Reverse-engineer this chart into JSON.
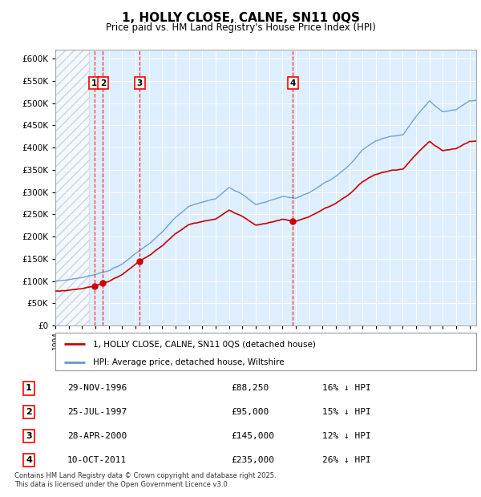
{
  "title": "1, HOLLY CLOSE, CALNE, SN11 0QS",
  "subtitle": "Price paid vs. HM Land Registry's House Price Index (HPI)",
  "ylim": [
    0,
    620000
  ],
  "yticks": [
    0,
    50000,
    100000,
    150000,
    200000,
    250000,
    300000,
    350000,
    400000,
    450000,
    500000,
    550000,
    600000
  ],
  "background_color": "#ffffff",
  "plot_bg_color": "#ddeeff",
  "grid_color": "#ffffff",
  "sale_vlines": [
    1996.91,
    1997.56,
    2000.32,
    2011.78
  ],
  "sale_prices": [
    88250,
    95000,
    145000,
    235000
  ],
  "sale_labels": [
    "1",
    "2",
    "3",
    "4"
  ],
  "legend_house_label": "1, HOLLY CLOSE, CALNE, SN11 0QS (detached house)",
  "legend_hpi_label": "HPI: Average price, detached house, Wiltshire",
  "table_rows": [
    {
      "num": "1",
      "date": "29-NOV-1996",
      "price": "£88,250",
      "hpi": "16% ↓ HPI"
    },
    {
      "num": "2",
      "date": "25-JUL-1997",
      "price": "£95,000",
      "hpi": "15% ↓ HPI"
    },
    {
      "num": "3",
      "date": "28-APR-2000",
      "price": "£145,000",
      "hpi": "12% ↓ HPI"
    },
    {
      "num": "4",
      "date": "10-OCT-2011",
      "price": "£235,000",
      "hpi": "26% ↓ HPI"
    }
  ],
  "footer": "Contains HM Land Registry data © Crown copyright and database right 2025.\nThis data is licensed under the Open Government Licence v3.0.",
  "house_color": "#cc0000",
  "hpi_color": "#6699cc",
  "xmin": 1994.0,
  "xmax": 2025.5,
  "hatch_xmax": 1996.5,
  "hpi_pts_x": [
    1994,
    1995,
    1996,
    1997,
    1998,
    1999,
    2000,
    2001,
    2002,
    2003,
    2004,
    2005,
    2006,
    2007,
    2008,
    2009,
    2010,
    2011,
    2012,
    2013,
    2014,
    2015,
    2016,
    2017,
    2018,
    2019,
    2020,
    2021,
    2022,
    2023,
    2024,
    2025
  ],
  "hpi_pts_y": [
    100000,
    103000,
    108000,
    115000,
    123000,
    138000,
    162000,
    183000,
    210000,
    243000,
    268000,
    278000,
    285000,
    310000,
    295000,
    272000,
    280000,
    290000,
    286000,
    298000,
    318000,
    335000,
    360000,
    395000,
    415000,
    425000,
    428000,
    470000,
    505000,
    480000,
    485000,
    505000
  ],
  "noise_seed": 42,
  "noise_scale_hpi": 1200,
  "noise_scale_house": 800
}
